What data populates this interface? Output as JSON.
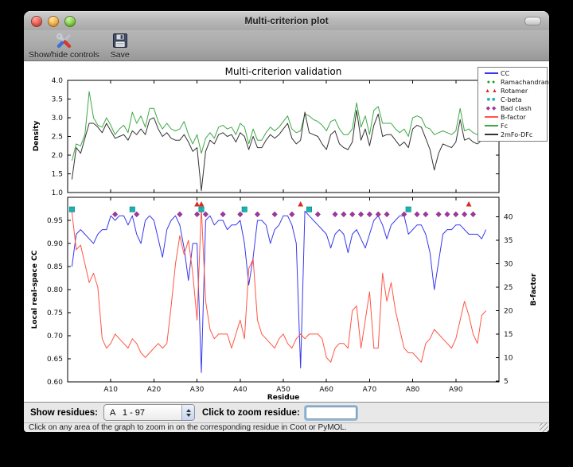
{
  "window": {
    "title": "Multi-criterion plot"
  },
  "toolbar": {
    "buttons": [
      {
        "label": "Show/hide controls",
        "icon": "tools-icon"
      },
      {
        "label": "Save",
        "icon": "save-icon"
      }
    ]
  },
  "legend": {
    "position": "upper right",
    "items": [
      {
        "label": "CC",
        "swatch": "line",
        "color": "#3838ee"
      },
      {
        "label": "Ramachandran",
        "swatch": "circles",
        "color": "#1f9a1f"
      },
      {
        "label": "Rotamer",
        "swatch": "triangles",
        "color": "#d62b1f"
      },
      {
        "label": "C-beta",
        "swatch": "squares",
        "color": "#17b3b3"
      },
      {
        "label": "Bad clash",
        "swatch": "diamonds",
        "color": "#a036a0"
      },
      {
        "label": "B-factor",
        "swatch": "line",
        "color": "#ff5544"
      },
      {
        "label": "Fc",
        "swatch": "line",
        "color": "#3fa845"
      },
      {
        "label": "2mFo-DFc",
        "swatch": "line",
        "color": "#333333"
      }
    ]
  },
  "chart_data": [
    {
      "type": "line",
      "title": "Multi-criterion validation",
      "ylabel": "Density",
      "ylim": [
        1.0,
        4.0
      ],
      "yticks": {
        "values": [
          4.0,
          3.5,
          3.0,
          2.5,
          2.0,
          1.5,
          1.0
        ],
        "labels": [
          "4.0",
          "3.5",
          "3.0",
          "2.5",
          "2.0",
          "1.5",
          "1.0"
        ]
      },
      "xlim": [
        0,
        100
      ],
      "x_start": 1,
      "grid": false,
      "series": [
        {
          "name": "Fc",
          "color": "#3fa845",
          "values": [
            1.85,
            2.3,
            2.25,
            2.55,
            3.7,
            3.0,
            2.8,
            2.75,
            3.0,
            2.8,
            2.55,
            2.7,
            2.8,
            2.6,
            3.15,
            2.85,
            3.05,
            2.75,
            3.25,
            3.25,
            2.9,
            2.7,
            2.85,
            2.7,
            2.65,
            2.7,
            2.9,
            2.55,
            2.3,
            2.55,
            2.05,
            2.45,
            2.6,
            2.45,
            2.75,
            2.8,
            2.7,
            2.75,
            2.55,
            2.85,
            2.75,
            2.3,
            2.7,
            2.4,
            2.4,
            2.6,
            2.75,
            2.65,
            2.75,
            2.9,
            3.05,
            2.7,
            2.6,
            2.65,
            3.1,
            3.05,
            2.95,
            2.9,
            2.8,
            2.65,
            2.9,
            2.95,
            2.7,
            2.55,
            2.55,
            2.7,
            3.4,
            2.75,
            3.05,
            2.55,
            3.2,
            3.3,
            2.85,
            2.85,
            2.85,
            2.7,
            2.6,
            2.7,
            2.5,
            3.0,
            3.05,
            3.0,
            2.75,
            2.7,
            2.55,
            2.6,
            2.65,
            2.6,
            2.55,
            2.65,
            3.25,
            2.65,
            2.7,
            2.6,
            2.55,
            2.6,
            3.55
          ]
        },
        {
          "name": "2mFo-DFc",
          "color": "#333333",
          "values": [
            1.35,
            2.2,
            2.05,
            2.45,
            2.85,
            2.85,
            2.75,
            2.6,
            2.85,
            2.65,
            2.45,
            2.5,
            2.55,
            2.4,
            2.65,
            2.55,
            2.7,
            2.55,
            2.95,
            3.0,
            2.7,
            2.5,
            2.6,
            2.45,
            2.4,
            2.4,
            2.55,
            2.35,
            2.1,
            2.2,
            1.05,
            2.1,
            2.4,
            2.3,
            2.55,
            2.6,
            2.5,
            2.55,
            2.35,
            2.6,
            2.5,
            2.15,
            2.5,
            2.2,
            2.2,
            2.4,
            2.55,
            2.45,
            2.55,
            2.7,
            2.85,
            2.45,
            2.3,
            2.4,
            3.15,
            2.6,
            2.55,
            2.5,
            2.3,
            2.15,
            2.55,
            2.65,
            2.3,
            2.2,
            2.15,
            2.35,
            3.2,
            2.4,
            2.7,
            2.25,
            2.8,
            3.1,
            2.5,
            2.55,
            2.55,
            2.4,
            2.25,
            2.35,
            2.2,
            2.7,
            2.8,
            2.75,
            2.45,
            2.15,
            1.6,
            2.05,
            2.3,
            2.25,
            2.2,
            2.35,
            2.95,
            2.4,
            2.45,
            2.35,
            2.3,
            2.4,
            3.3
          ]
        }
      ]
    },
    {
      "type": "line",
      "xlabel": "Residue",
      "ylabel_left": "Local real-space CC",
      "ylabel_right": "B-factor",
      "ylim_left": [
        0.6,
        1.0
      ],
      "ylim_right": [
        4.8,
        44.2
      ],
      "yticks_left": {
        "values": [
          0.95,
          0.9,
          0.85,
          0.8,
          0.75,
          0.7,
          0.65,
          0.6
        ],
        "labels": [
          "0.95",
          "0.90",
          "0.85",
          "0.80",
          "0.75",
          "0.70",
          "0.65",
          "0.60"
        ]
      },
      "yticks_right": {
        "values": [
          40,
          35,
          30,
          25,
          20,
          15,
          10,
          5
        ],
        "labels": [
          "40",
          "35",
          "30",
          "25",
          "20",
          "15",
          "10",
          "5"
        ]
      },
      "xticks": {
        "values": [
          10,
          20,
          30,
          40,
          50,
          60,
          70,
          80,
          90
        ],
        "labels": [
          "A10",
          "A20",
          "A30",
          "A40",
          "A50",
          "A60",
          "A70",
          "A80",
          "A90"
        ]
      },
      "xlim": [
        0,
        100
      ],
      "x_start": 1,
      "grid": false,
      "series": [
        {
          "name": "CC",
          "axis": "left",
          "color": "#3838ee",
          "values": [
            0.85,
            0.92,
            0.93,
            0.92,
            0.91,
            0.9,
            0.92,
            0.93,
            0.93,
            0.96,
            0.95,
            0.96,
            0.96,
            0.94,
            0.96,
            0.92,
            0.9,
            0.95,
            0.96,
            0.95,
            0.91,
            0.87,
            0.93,
            0.95,
            0.96,
            0.94,
            0.89,
            0.82,
            0.9,
            0.9,
            0.62,
            0.95,
            0.96,
            0.94,
            0.95,
            0.95,
            0.93,
            0.94,
            0.94,
            0.95,
            0.9,
            0.81,
            0.87,
            0.95,
            0.95,
            0.94,
            0.9,
            0.93,
            0.94,
            0.96,
            0.96,
            0.94,
            0.9,
            0.63,
            0.97,
            0.96,
            0.95,
            0.94,
            0.93,
            0.92,
            0.89,
            0.92,
            0.93,
            0.92,
            0.88,
            0.92,
            0.93,
            0.91,
            0.89,
            0.92,
            0.95,
            0.96,
            0.94,
            0.91,
            0.94,
            0.95,
            0.96,
            0.96,
            0.92,
            0.93,
            0.94,
            0.94,
            0.92,
            0.88,
            0.8,
            0.86,
            0.92,
            0.93,
            0.93,
            0.94,
            0.94,
            0.93,
            0.92,
            0.92,
            0.92,
            0.91,
            0.93
          ]
        },
        {
          "name": "B-factor",
          "axis": "right",
          "color": "#ff5544",
          "values": [
            41,
            33,
            34,
            30,
            26,
            28,
            25,
            14,
            12,
            13,
            15,
            14,
            13,
            12,
            14,
            13,
            11,
            10,
            11,
            12,
            13,
            12,
            13,
            21,
            30,
            36,
            32,
            35,
            28,
            18,
            42,
            22,
            16,
            14,
            15,
            15,
            15,
            12,
            15,
            18,
            14,
            29,
            31,
            18,
            15,
            14,
            13,
            12,
            14,
            15,
            13,
            12,
            14,
            15,
            14,
            15,
            15,
            15,
            14,
            10,
            9,
            12,
            13,
            13,
            12,
            20,
            21,
            12,
            18,
            24,
            12,
            12,
            28,
            22,
            26,
            20,
            16,
            12,
            11,
            11,
            10,
            9,
            13,
            14,
            16,
            15,
            14,
            13,
            12,
            14,
            18,
            22,
            19,
            15,
            13,
            19,
            20
          ]
        }
      ],
      "markers": [
        {
          "name": "Ramachandran",
          "shape": "circle",
          "color": "#1f9a1f",
          "residues": []
        },
        {
          "name": "Rotamer",
          "shape": "triangle",
          "color": "#d62b1f",
          "residues": [
            30,
            31,
            54,
            93
          ]
        },
        {
          "name": "C-beta",
          "shape": "square",
          "color": "#17b3b3",
          "residues": [
            1,
            15,
            31,
            41,
            56,
            79
          ]
        },
        {
          "name": "Bad clash",
          "shape": "diamond",
          "color": "#a036a0",
          "residues": [
            11,
            16,
            26,
            30,
            32,
            36,
            40,
            44,
            48,
            52,
            58,
            62,
            64,
            66,
            68,
            70,
            72,
            74,
            78,
            81,
            83,
            86,
            88,
            90,
            92,
            94
          ]
        }
      ]
    }
  ],
  "controls": {
    "show_residues_label": "Show residues:",
    "residue_range_value": "A   1 - 97",
    "zoom_label": "Click to zoom residue:",
    "zoom_input_value": ""
  },
  "status_bar": {
    "message": "Click on any area of the graph to zoom in on the corresponding residue in Coot or PyMOL."
  }
}
